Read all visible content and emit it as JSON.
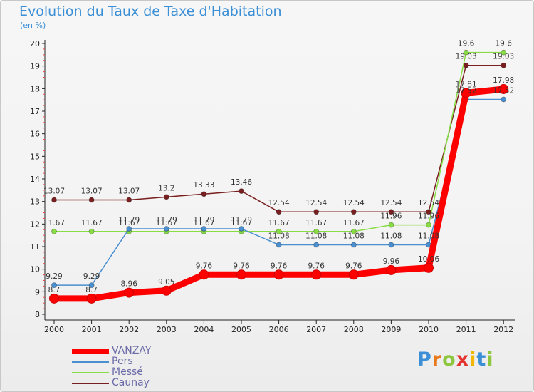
{
  "header": {
    "title": "Evolution du Taux de Taxe d'Habitation",
    "unit": "(en %)"
  },
  "logo": {
    "letters": [
      "P",
      "r",
      "o",
      "x",
      "i",
      "t",
      "i"
    ],
    "colors": [
      "#3a8fd6",
      "#e87a1e",
      "#8dc63f",
      "#e3342f",
      "#f2b705",
      "#3a8fd6",
      "#8dc63f"
    ]
  },
  "chart_data": {
    "type": "line",
    "title": "Evolution du Taux de Taxe d'Habitation",
    "ylabel": "(en %)",
    "xlabel": "",
    "ylim": [
      8,
      20
    ],
    "yticks": [
      "8",
      "9",
      "10",
      "11",
      "12",
      "13",
      "14",
      "15",
      "16",
      "17",
      "18",
      "19",
      "20"
    ],
    "categories": [
      "2000",
      "2001",
      "2002",
      "2003",
      "2004",
      "2005",
      "2006",
      "2007",
      "2008",
      "2009",
      "2010",
      "2011",
      "2012"
    ],
    "grid": false,
    "legend": "bottom-left",
    "series": [
      {
        "name": "VANZAY",
        "color": "#ff0000",
        "values": [
          8.7,
          8.7,
          8.96,
          9.05,
          9.76,
          9.76,
          9.76,
          9.76,
          9.76,
          9.96,
          10.06,
          17.81,
          17.98
        ],
        "labels": [
          "8.7",
          "8.7",
          "8.96",
          "9.05",
          "9.76",
          "9.76",
          "9.76",
          "9.76",
          "9.76",
          "9.96",
          "10.06",
          "17.81",
          "17.98"
        ]
      },
      {
        "name": "Pers",
        "color": "#4a8fd0",
        "values": [
          9.29,
          9.29,
          11.79,
          11.79,
          11.79,
          11.79,
          11.08,
          11.08,
          11.08,
          11.08,
          11.08,
          17.52,
          17.52
        ],
        "labels": [
          "9.29",
          "9.29",
          "11.79",
          "11.79",
          "11.79",
          "11.79",
          "11.08",
          "11.08",
          "11.08",
          "11.08",
          "11.08",
          "17.52",
          "17.52"
        ]
      },
      {
        "name": "Messé",
        "color": "#88dd44",
        "values": [
          11.67,
          11.67,
          11.67,
          11.67,
          11.67,
          11.67,
          11.67,
          11.67,
          11.67,
          11.96,
          11.96,
          19.6,
          19.6
        ],
        "labels": [
          "11.67",
          "11.67",
          "11.67",
          "11.67",
          "11.67",
          "11.67",
          "11.67",
          "11.67",
          "11.67",
          "11.96",
          "11.96",
          "19.6",
          "19.6"
        ]
      },
      {
        "name": "Caunay",
        "color": "#7a1f1f",
        "values": [
          13.07,
          13.07,
          13.07,
          13.2,
          13.33,
          13.46,
          12.54,
          12.54,
          12.54,
          12.54,
          12.54,
          19.03,
          19.03
        ],
        "labels": [
          "13.07",
          "13.07",
          "13.07",
          "13.2",
          "13.33",
          "13.46",
          "12.54",
          "12.54",
          "12.54",
          "12.54",
          "12.54",
          "19.03",
          "19.03"
        ]
      }
    ]
  }
}
